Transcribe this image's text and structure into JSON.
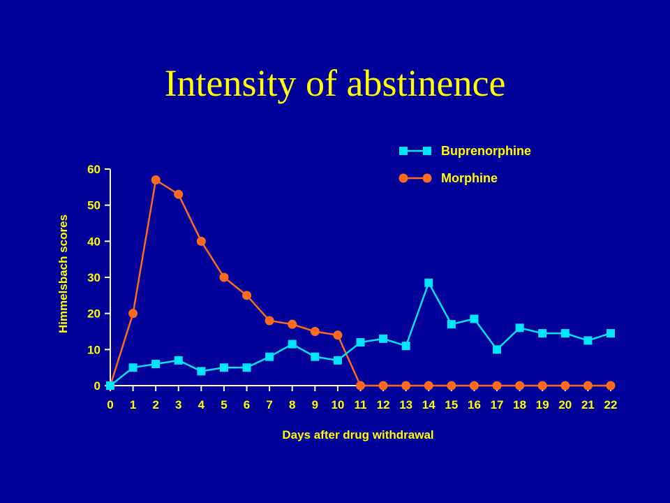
{
  "title": "Intensity of abstinence",
  "colors": {
    "background": "#000099",
    "text": "#FFFF00",
    "axis": "#FFFFFF",
    "buprenorphine": "#00E5FF",
    "morphine": "#FF6A1F"
  },
  "chart_data": {
    "type": "line",
    "xlabel": "Days after drug withdrawal",
    "ylabel": "Himmelsbach scores",
    "xlim": [
      0,
      22
    ],
    "ylim": [
      0,
      60
    ],
    "x_ticks": [
      0,
      1,
      2,
      3,
      4,
      5,
      6,
      7,
      8,
      9,
      10,
      11,
      12,
      13,
      14,
      15,
      16,
      17,
      18,
      19,
      20,
      21,
      22
    ],
    "y_ticks": [
      0,
      10,
      20,
      30,
      40,
      50,
      60
    ],
    "legend_position": "top-right",
    "series": [
      {
        "name": "Buprenorphine",
        "marker": "square",
        "color": "#00E5FF",
        "x": [
          0,
          1,
          2,
          3,
          4,
          5,
          6,
          7,
          8,
          9,
          10,
          11,
          12,
          13,
          14,
          15,
          16,
          17,
          18,
          19,
          20,
          21,
          22
        ],
        "y": [
          0,
          5,
          6,
          7,
          4,
          5,
          5,
          8,
          11.5,
          8,
          7,
          12,
          13,
          11,
          28.5,
          17,
          18.5,
          10,
          16,
          14.5,
          14.5,
          12.5,
          14.5
        ]
      },
      {
        "name": "Morphine",
        "marker": "circle",
        "color": "#FF6A1F",
        "x": [
          0,
          1,
          2,
          3,
          4,
          5,
          6,
          7,
          8,
          9,
          10,
          11,
          12,
          13,
          14,
          15,
          16,
          17,
          18,
          19,
          20,
          21,
          22
        ],
        "y": [
          0,
          20,
          57,
          53,
          40,
          30,
          25,
          18,
          17,
          15,
          14,
          0,
          0,
          0,
          0,
          0,
          0,
          0,
          0,
          0,
          0,
          0,
          0
        ]
      }
    ]
  }
}
